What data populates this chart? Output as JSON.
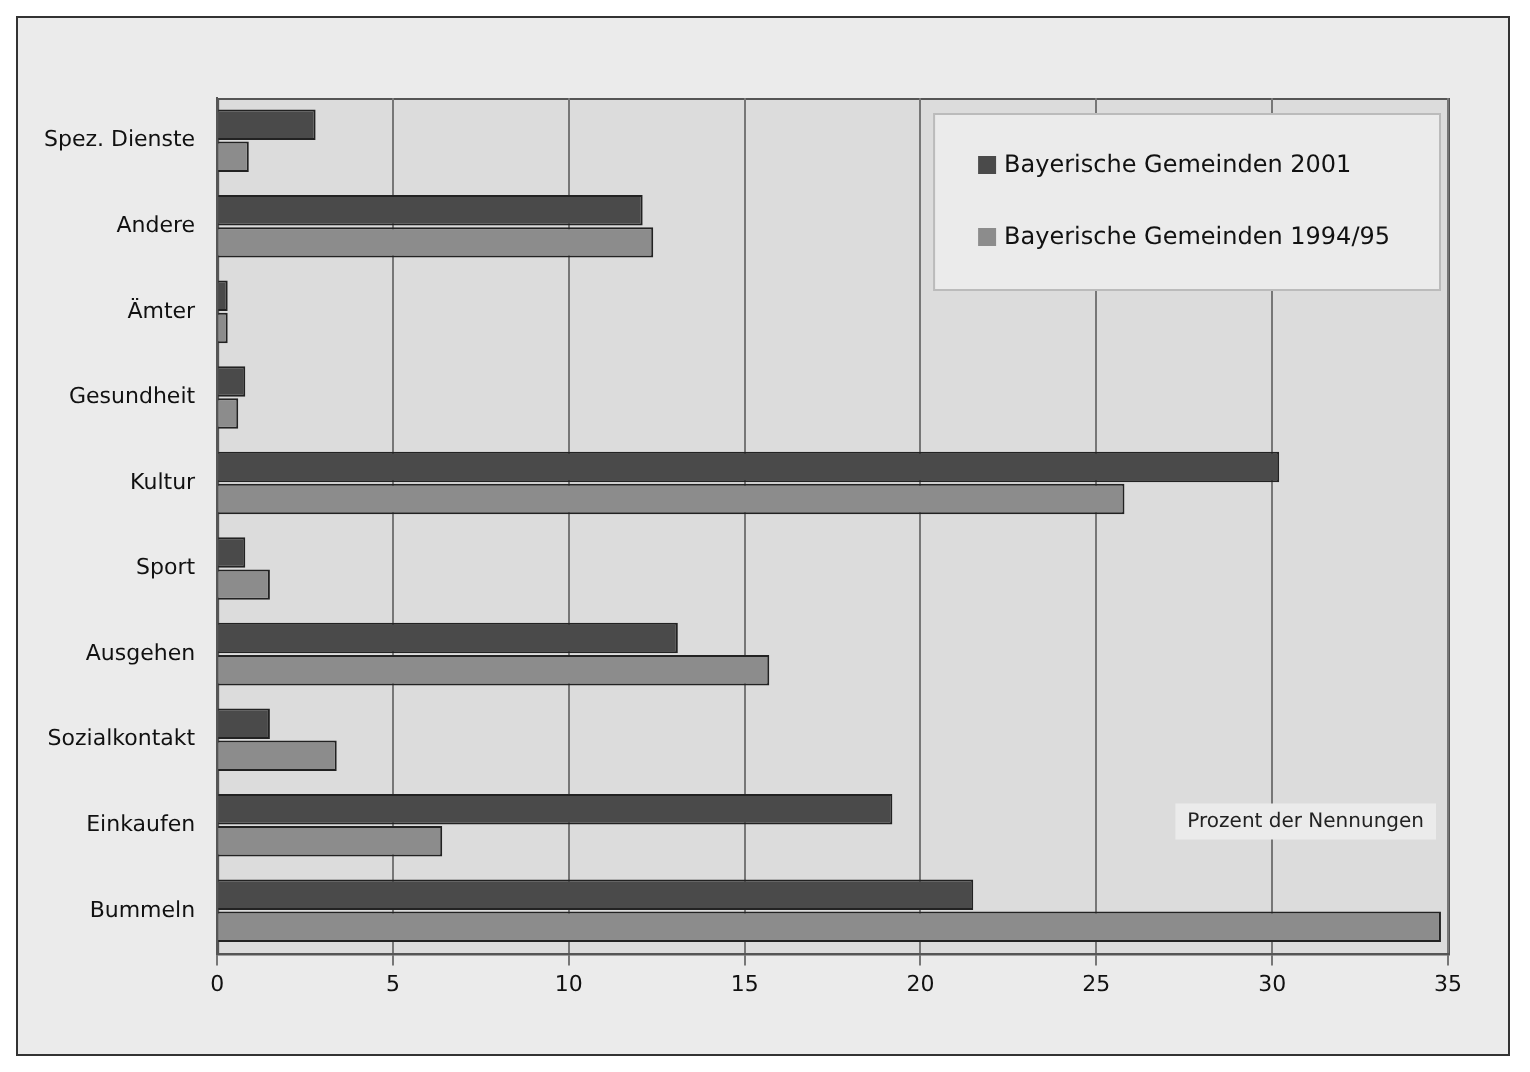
{
  "chart_data": {
    "type": "bar",
    "orientation": "horizontal",
    "categories": [
      "Spez. Dienste",
      "Andere",
      "Ämter",
      "Gesundheit",
      "Kultur",
      "Sport",
      "Ausgehen",
      "Sozialkontakt",
      "Einkaufen",
      "Bummeln"
    ],
    "series": [
      {
        "name": "Bayerische Gemeinden 2001",
        "color": "#4a4a4a",
        "values": [
          2.8,
          12.1,
          0.3,
          0.8,
          30.2,
          0.8,
          13.1,
          1.5,
          19.2,
          21.5
        ]
      },
      {
        "name": "Bayerische Gemeinden 1994/95",
        "color": "#8c8c8c",
        "values": [
          0.9,
          12.4,
          0.3,
          0.6,
          25.8,
          1.5,
          15.7,
          3.4,
          6.4,
          34.8
        ]
      }
    ],
    "xlim": [
      0,
      35
    ],
    "xticks": [
      0,
      5,
      10,
      15,
      20,
      25,
      30,
      35
    ],
    "grid": "x",
    "legend": "top right",
    "annotations": [
      {
        "text": "Prozent der Nennungen"
      }
    ]
  }
}
